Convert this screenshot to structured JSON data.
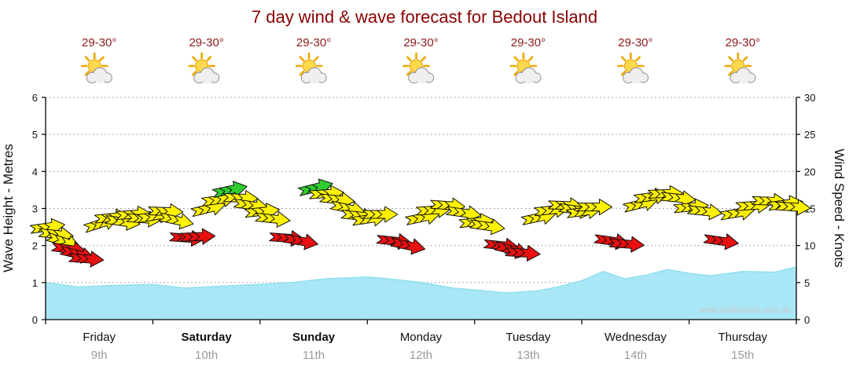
{
  "chart_data": {
    "type": "area",
    "title": "7 day wind & wave forecast for Bedout Island",
    "watermark": "www.seabreeze.com.au",
    "grid": "horizontal-dashed",
    "legend": "none",
    "days": [
      {
        "name": "Friday",
        "date": "9th",
        "temperature": "29-30°",
        "weather_icon": "sun-behind-cloud-icon",
        "bold": false
      },
      {
        "name": "Saturday",
        "date": "10th",
        "temperature": "29-30°",
        "weather_icon": "sun-behind-cloud-icon",
        "bold": true
      },
      {
        "name": "Sunday",
        "date": "11th",
        "temperature": "29-30°",
        "weather_icon": "sun-behind-cloud-icon",
        "bold": true
      },
      {
        "name": "Monday",
        "date": "12th",
        "temperature": "29-30°",
        "weather_icon": "sun-behind-cloud-icon",
        "bold": false
      },
      {
        "name": "Tuesday",
        "date": "13th",
        "temperature": "29-30°",
        "weather_icon": "sun-behind-cloud-icon",
        "bold": false
      },
      {
        "name": "Wednesday",
        "date": "14th",
        "temperature": "29-30°",
        "weather_icon": "sun-behind-cloud-icon",
        "bold": false
      },
      {
        "name": "Thursday",
        "date": "15th",
        "temperature": "29-30°",
        "weather_icon": "sun-behind-cloud-icon",
        "bold": false
      }
    ],
    "left_axis": {
      "label": "Wave Height - Metres",
      "range": [
        0,
        6
      ],
      "ticks": [
        0,
        1,
        2,
        3,
        4,
        5,
        6
      ]
    },
    "right_axis": {
      "label": "Wind Speed - Knots",
      "range": [
        0,
        30
      ],
      "ticks": [
        0,
        5,
        10,
        15,
        20,
        25,
        30
      ]
    },
    "colors": {
      "title": "#8B0000",
      "wave_fill": "#A9E7F6",
      "wave_line": "#8FDFF0",
      "arrow_yellow": "#FFF200",
      "arrow_red": "#E81010",
      "arrow_green": "#2FCC2F",
      "grid": "#AAAAAA"
    },
    "series": [
      {
        "name": "Wave Height (m)",
        "type": "area",
        "x": [
          0,
          0.3,
          0.6,
          1,
          1.3,
          1.6,
          2,
          2.3,
          2.6,
          3,
          3.2,
          3.5,
          3.8,
          4,
          4.3,
          4.6,
          4.8,
          5,
          5.2,
          5.4,
          5.6,
          5.8,
          6,
          6.2,
          6.5,
          6.8,
          7
        ],
        "values": [
          1.0,
          0.88,
          0.92,
          0.95,
          0.85,
          0.9,
          0.95,
          1.0,
          1.1,
          1.15,
          1.1,
          1.0,
          0.85,
          0.8,
          0.72,
          0.78,
          0.9,
          1.05,
          1.3,
          1.1,
          1.2,
          1.35,
          1.25,
          1.18,
          1.3,
          1.28,
          1.42
        ]
      },
      {
        "name": "Wind speed & direction (knots)",
        "type": "wind-arrows",
        "arrows": [
          {
            "t": 0.02,
            "kn": 12.5,
            "dir": -8,
            "c": "yellow"
          },
          {
            "t": 0.1,
            "kn": 11.5,
            "dir": 6,
            "c": "yellow"
          },
          {
            "t": 0.17,
            "kn": 10.5,
            "dir": 18,
            "c": "yellow"
          },
          {
            "t": 0.22,
            "kn": 9.5,
            "dir": 8,
            "c": "red"
          },
          {
            "t": 0.3,
            "kn": 8.8,
            "dir": 14,
            "c": "red"
          },
          {
            "t": 0.38,
            "kn": 8.2,
            "dir": 4,
            "c": "red"
          },
          {
            "t": 0.52,
            "kn": 13.0,
            "dir": -18,
            "c": "yellow"
          },
          {
            "t": 0.62,
            "kn": 13.8,
            "dir": -6,
            "c": "yellow"
          },
          {
            "t": 0.72,
            "kn": 13.2,
            "dir": 8,
            "c": "yellow"
          },
          {
            "t": 0.82,
            "kn": 14.2,
            "dir": -4,
            "c": "yellow"
          },
          {
            "t": 0.92,
            "kn": 13.6,
            "dir": 4,
            "c": "yellow"
          },
          {
            "t": 1.02,
            "kn": 14.0,
            "dir": -10,
            "c": "yellow"
          },
          {
            "t": 1.12,
            "kn": 14.6,
            "dir": 2,
            "c": "yellow"
          },
          {
            "t": 1.22,
            "kn": 13.4,
            "dir": 12,
            "c": "yellow"
          },
          {
            "t": 1.32,
            "kn": 11.0,
            "dir": 4,
            "c": "red"
          },
          {
            "t": 1.42,
            "kn": 11.2,
            "dir": -2,
            "c": "red"
          },
          {
            "t": 1.52,
            "kn": 15.0,
            "dir": -14,
            "c": "yellow"
          },
          {
            "t": 1.62,
            "kn": 16.2,
            "dir": -8,
            "c": "yellow"
          },
          {
            "t": 1.72,
            "kn": 17.5,
            "dir": -12,
            "c": "green"
          },
          {
            "t": 1.82,
            "kn": 16.4,
            "dir": 2,
            "c": "yellow"
          },
          {
            "t": 1.92,
            "kn": 15.4,
            "dir": 8,
            "c": "yellow"
          },
          {
            "t": 2.02,
            "kn": 14.6,
            "dir": -6,
            "c": "yellow"
          },
          {
            "t": 2.12,
            "kn": 13.6,
            "dir": 6,
            "c": "yellow"
          },
          {
            "t": 2.25,
            "kn": 11.0,
            "dir": 4,
            "c": "red"
          },
          {
            "t": 2.38,
            "kn": 10.6,
            "dir": 10,
            "c": "red"
          },
          {
            "t": 2.52,
            "kn": 17.8,
            "dir": -14,
            "c": "green"
          },
          {
            "t": 2.62,
            "kn": 17.0,
            "dir": -4,
            "c": "yellow"
          },
          {
            "t": 2.72,
            "kn": 16.2,
            "dir": 6,
            "c": "yellow"
          },
          {
            "t": 2.82,
            "kn": 15.0,
            "dir": 12,
            "c": "yellow"
          },
          {
            "t": 2.92,
            "kn": 14.0,
            "dir": 6,
            "c": "yellow"
          },
          {
            "t": 3.02,
            "kn": 13.6,
            "dir": -8,
            "c": "yellow"
          },
          {
            "t": 3.12,
            "kn": 14.2,
            "dir": 0,
            "c": "yellow"
          },
          {
            "t": 3.25,
            "kn": 10.6,
            "dir": 6,
            "c": "red"
          },
          {
            "t": 3.38,
            "kn": 10.0,
            "dir": 12,
            "c": "red"
          },
          {
            "t": 3.52,
            "kn": 13.8,
            "dir": -12,
            "c": "yellow"
          },
          {
            "t": 3.62,
            "kn": 14.8,
            "dir": -4,
            "c": "yellow"
          },
          {
            "t": 3.75,
            "kn": 15.4,
            "dir": 4,
            "c": "yellow"
          },
          {
            "t": 3.9,
            "kn": 14.4,
            "dir": 8,
            "c": "yellow"
          },
          {
            "t": 4.02,
            "kn": 13.2,
            "dir": -6,
            "c": "yellow"
          },
          {
            "t": 4.12,
            "kn": 12.6,
            "dir": 8,
            "c": "yellow"
          },
          {
            "t": 4.25,
            "kn": 10.0,
            "dir": 6,
            "c": "red"
          },
          {
            "t": 4.35,
            "kn": 9.4,
            "dir": 14,
            "c": "red"
          },
          {
            "t": 4.45,
            "kn": 9.0,
            "dir": 4,
            "c": "red"
          },
          {
            "t": 4.6,
            "kn": 13.8,
            "dir": -12,
            "c": "yellow"
          },
          {
            "t": 4.72,
            "kn": 14.8,
            "dir": -6,
            "c": "yellow"
          },
          {
            "t": 4.85,
            "kn": 15.4,
            "dir": 2,
            "c": "yellow"
          },
          {
            "t": 4.95,
            "kn": 14.8,
            "dir": 8,
            "c": "yellow"
          },
          {
            "t": 5.02,
            "kn": 14.6,
            "dir": -8,
            "c": "yellow"
          },
          {
            "t": 5.12,
            "kn": 15.2,
            "dir": 0,
            "c": "yellow"
          },
          {
            "t": 5.28,
            "kn": 10.6,
            "dir": 8,
            "c": "red"
          },
          {
            "t": 5.42,
            "kn": 10.2,
            "dir": 4,
            "c": "red"
          },
          {
            "t": 5.55,
            "kn": 15.6,
            "dir": -14,
            "c": "yellow"
          },
          {
            "t": 5.65,
            "kn": 16.6,
            "dir": -8,
            "c": "yellow"
          },
          {
            "t": 5.78,
            "kn": 17.0,
            "dir": -2,
            "c": "yellow"
          },
          {
            "t": 5.9,
            "kn": 16.4,
            "dir": 6,
            "c": "yellow"
          },
          {
            "t": 6.02,
            "kn": 15.2,
            "dir": -6,
            "c": "yellow"
          },
          {
            "t": 6.15,
            "kn": 14.6,
            "dir": 6,
            "c": "yellow"
          },
          {
            "t": 6.3,
            "kn": 10.6,
            "dir": 8,
            "c": "red"
          },
          {
            "t": 6.45,
            "kn": 14.4,
            "dir": -10,
            "c": "yellow"
          },
          {
            "t": 6.6,
            "kn": 15.4,
            "dir": -4,
            "c": "yellow"
          },
          {
            "t": 6.75,
            "kn": 16.0,
            "dir": 2,
            "c": "yellow"
          },
          {
            "t": 6.9,
            "kn": 15.6,
            "dir": -8,
            "c": "yellow"
          },
          {
            "t": 6.97,
            "kn": 15.2,
            "dir": 4,
            "c": "yellow"
          }
        ]
      }
    ]
  }
}
